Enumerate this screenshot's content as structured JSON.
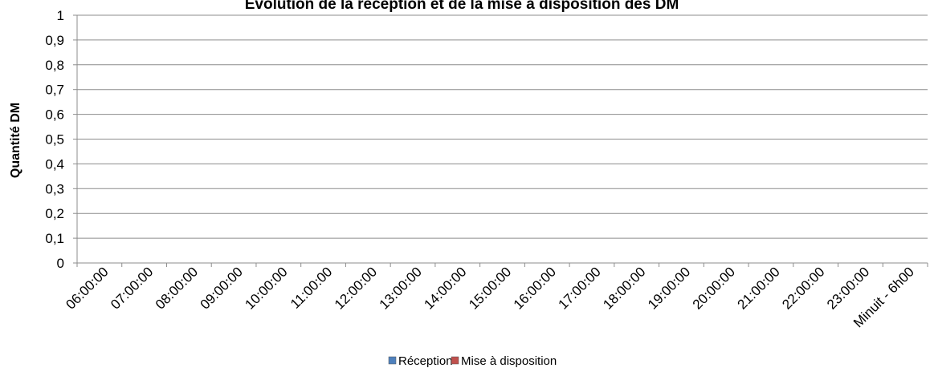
{
  "chart_data": {
    "type": "bar",
    "title": "Evolution de la réception et de la mise à disposition des DM",
    "xlabel": "",
    "ylabel": "Quantité DM",
    "ylim": [
      0,
      1
    ],
    "y_ticks": [
      "0",
      "0,1",
      "0,2",
      "0,3",
      "0,4",
      "0,5",
      "0,6",
      "0,7",
      "0,8",
      "0,9",
      "1"
    ],
    "categories": [
      "06:00:00",
      "07:00:00",
      "08:00:00",
      "09:00:00",
      "10:00:00",
      "11:00:00",
      "12:00:00",
      "13:00:00",
      "14:00:00",
      "15:00:00",
      "16:00:00",
      "17:00:00",
      "18:00:00",
      "19:00:00",
      "20:00:00",
      "21:00:00",
      "22:00:00",
      "23:00:00",
      "Minuit - 6h00"
    ],
    "series": [
      {
        "name": "Réception",
        "color": "#4F81BD",
        "values": [
          0,
          0,
          0,
          0,
          0,
          0,
          0,
          0,
          0,
          0,
          0,
          0,
          0,
          0,
          0,
          0,
          0,
          0,
          0
        ]
      },
      {
        "name": "Mise à disposition",
        "color": "#C0504D",
        "values": [
          0,
          0,
          0,
          0,
          0,
          0,
          0,
          0,
          0,
          0,
          0,
          0,
          0,
          0,
          0,
          0,
          0,
          0,
          0
        ]
      }
    ],
    "grid": true,
    "legend_position": "bottom"
  }
}
